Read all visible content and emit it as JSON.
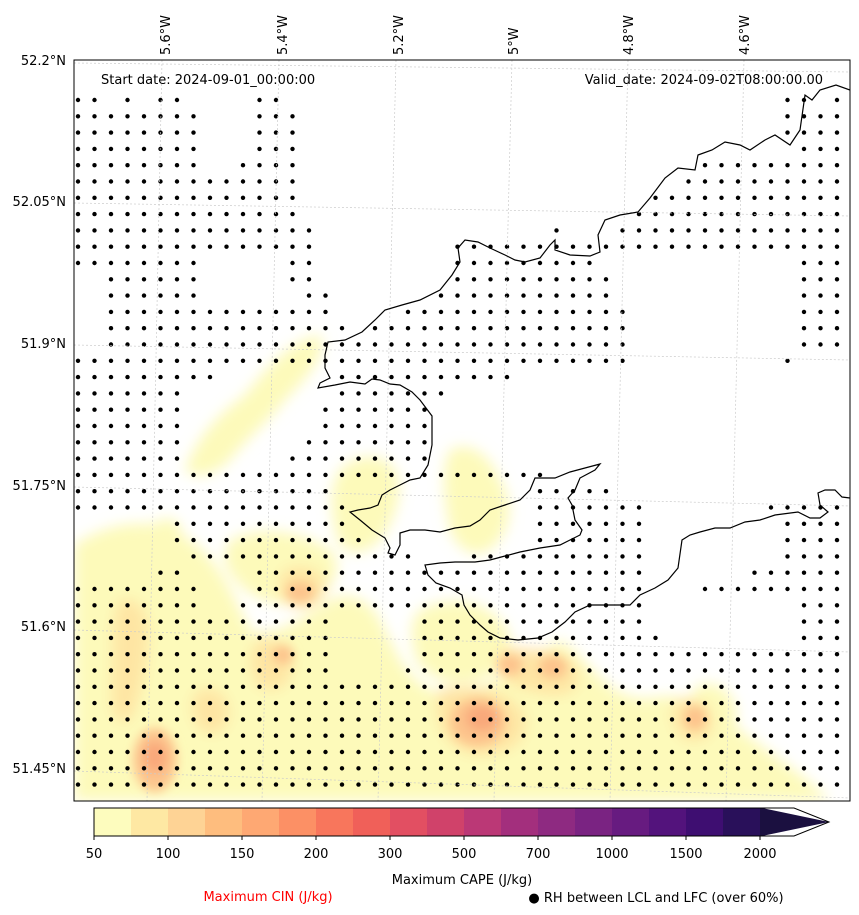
{
  "map": {
    "start_date": "Start date: 2024-09-01_00:00:00",
    "valid_date": "Valid_date: 2024-09-02T08:00:00.00",
    "lon_labels": [
      "5.6°W",
      "5.4°W",
      "5.2°W",
      "5°W",
      "4.8°W",
      "4.6°W"
    ],
    "lat_labels": [
      "52.2°N",
      "52.05°N",
      "51.9°N",
      "51.75°N",
      "51.6°N",
      "51.45°N"
    ]
  },
  "colorbar": {
    "title": "Maximum CAPE (J/kg)",
    "ticks": [
      "50",
      "100",
      "150",
      "200",
      "300",
      "500",
      "700",
      "1000",
      "1500",
      "2000"
    ],
    "colors": [
      "#fdfcbe",
      "#fee8a3",
      "#fed395",
      "#febd7e",
      "#fea873",
      "#fc9065",
      "#f8765c",
      "#f06059",
      "#e24f62",
      "#d0426a",
      "#bb3876",
      "#a32f7d",
      "#8e2a81",
      "#7a2382",
      "#671b80",
      "#53137c",
      "#3e0e71",
      "#29105a",
      "#1b1040"
    ]
  },
  "legend": {
    "cin_label": "Maximum CIN (J/kg)",
    "rh_label": "● RH between LCL and LFC (over 60%)"
  },
  "styles": {
    "cin_color": "#ff0000",
    "dot_color": "#000000",
    "coast_color": "#000000",
    "grid_color": "#cccccc"
  }
}
